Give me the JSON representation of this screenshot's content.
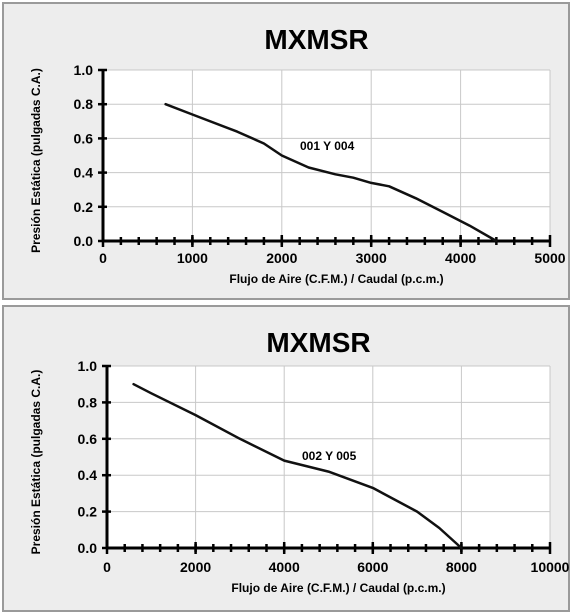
{
  "chart_data": [
    {
      "type": "line",
      "title": "MXMSR",
      "xlabel": "Flujo de Aire (C.F.M.) / Caudal (p.c.m.)",
      "ylabel": "Presión Estática (pulgadas C.A.)",
      "xlim": [
        0,
        5000
      ],
      "ylim": [
        0,
        1.0
      ],
      "xticks": [
        0,
        1000,
        2000,
        3000,
        4000,
        5000
      ],
      "xtick_labels": [
        "0",
        "1000",
        "2000",
        "3000",
        "4000",
        "5000"
      ],
      "yticks": [
        0.0,
        0.2,
        0.4,
        0.6,
        0.8,
        1.0
      ],
      "ytick_labels": [
        "0.0",
        "0.2",
        "0.4",
        "0.6",
        "0.8",
        "1.0"
      ],
      "minor_x_step": 200,
      "grid": true,
      "annotation": {
        "text": "001 Y 004",
        "x": 2500,
        "y": 0.53
      },
      "series": [
        {
          "x": [
            700,
            1000,
            1500,
            1800,
            2000,
            2300,
            2600,
            2800,
            3000,
            3200,
            3500,
            3800,
            4100,
            4400
          ],
          "y": [
            0.8,
            0.74,
            0.64,
            0.57,
            0.5,
            0.43,
            0.39,
            0.37,
            0.34,
            0.32,
            0.25,
            0.17,
            0.09,
            0.0
          ]
        }
      ]
    },
    {
      "type": "line",
      "title": "MXMSR",
      "xlabel": "Flujo de Aire (C.F.M.) / Caudal (p.c.m.)",
      "ylabel": "Presión Estática (pulgadas C.A.)",
      "xlim": [
        0,
        10000
      ],
      "ylim": [
        0,
        1.0
      ],
      "xticks": [
        0,
        2000,
        4000,
        6000,
        8000,
        10000
      ],
      "xtick_labels": [
        "0",
        "2000",
        "4000",
        "6000",
        "8000",
        "10000"
      ],
      "yticks": [
        0.0,
        0.2,
        0.4,
        0.6,
        0.8,
        1.0
      ],
      "ytick_labels": [
        "0.0",
        "0.2",
        "0.4",
        "0.6",
        "0.8",
        "1.0"
      ],
      "minor_x_step": 400,
      "grid": true,
      "annotation": {
        "text": "002 Y 005",
        "x": 5000,
        "y": 0.53
      },
      "series": [
        {
          "x": [
            600,
            1000,
            2000,
            3000,
            4000,
            5000,
            6000,
            7000,
            7500,
            8000
          ],
          "y": [
            0.9,
            0.85,
            0.73,
            0.6,
            0.48,
            0.42,
            0.33,
            0.2,
            0.11,
            0.0
          ]
        }
      ]
    }
  ]
}
